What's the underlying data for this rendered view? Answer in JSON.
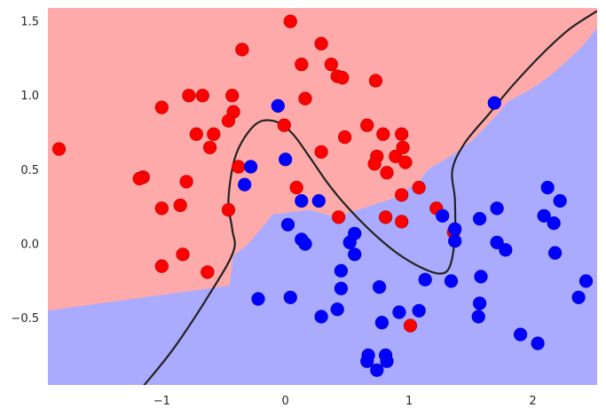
{
  "chart_data": {
    "type": "scatter",
    "title": "",
    "xlabel": "",
    "ylabel": "",
    "xlim": [
      -1.92,
      2.52
    ],
    "ylim": [
      -0.95,
      1.59
    ],
    "grid": false,
    "x_ticks": [
      -1,
      0,
      1,
      2
    ],
    "x_tick_labels": [
      "−1",
      "0",
      "1",
      "2"
    ],
    "y_ticks": [
      -0.5,
      0.0,
      0.5,
      1.0,
      1.5
    ],
    "y_tick_labels": [
      "−0.5",
      "0.0",
      "0.5",
      "1.0",
      "1.5"
    ],
    "colors": {
      "class_0_region": "#ffaaaa",
      "class_1_region": "#aaaaff",
      "class_0_points": "#ff0000",
      "class_1_points": "#0000ff",
      "boundary_line": "#222222"
    },
    "regions": [
      {
        "class": 0,
        "label_color": "red",
        "location": "upper-left"
      },
      {
        "class": 1,
        "label_color": "blue",
        "location": "lower-right"
      }
    ],
    "region_boundary": [
      [
        -1.92,
        -0.45
      ],
      [
        -0.45,
        -0.28
      ],
      [
        -0.42,
        -0.08
      ],
      [
        -0.3,
        0.0
      ],
      [
        -0.1,
        0.2
      ],
      [
        0.2,
        0.23
      ],
      [
        0.4,
        0.18
      ],
      [
        0.7,
        0.26
      ],
      [
        0.88,
        0.31
      ],
      [
        1.08,
        0.42
      ],
      [
        1.15,
        0.5
      ],
      [
        1.35,
        0.6
      ],
      [
        1.5,
        0.69
      ],
      [
        1.62,
        0.79
      ],
      [
        1.72,
        0.88
      ],
      [
        1.8,
        0.96
      ],
      [
        2.0,
        1.05
      ],
      [
        2.15,
        1.14
      ],
      [
        2.3,
        1.25
      ],
      [
        2.42,
        1.35
      ],
      [
        2.52,
        1.46
      ]
    ],
    "decision_curve": [
      [
        -1.15,
        -0.96
      ],
      [
        -0.9,
        -0.7
      ],
      [
        -0.6,
        -0.32
      ],
      [
        -0.42,
        -0.05
      ],
      [
        -0.43,
        0.1
      ],
      [
        -0.46,
        0.3
      ],
      [
        -0.4,
        0.6
      ],
      [
        -0.25,
        0.8
      ],
      [
        -0.1,
        0.83
      ],
      [
        0.05,
        0.75
      ],
      [
        0.2,
        0.58
      ],
      [
        0.35,
        0.4
      ],
      [
        0.5,
        0.25
      ],
      [
        0.7,
        0.08
      ],
      [
        0.9,
        -0.06
      ],
      [
        1.1,
        -0.16
      ],
      [
        1.25,
        -0.2
      ],
      [
        1.33,
        -0.15
      ],
      [
        1.37,
        0.05
      ],
      [
        1.37,
        0.3
      ],
      [
        1.35,
        0.5
      ],
      [
        1.45,
        0.68
      ],
      [
        1.65,
        0.88
      ],
      [
        1.85,
        1.08
      ],
      [
        2.1,
        1.3
      ],
      [
        2.3,
        1.45
      ],
      [
        2.52,
        1.57
      ]
    ],
    "series": [
      {
        "class": 0,
        "points": [
          [
            -1.83,
            0.64
          ],
          [
            -0.35,
            1.31
          ],
          [
            -0.43,
            1.0
          ],
          [
            -0.42,
            0.89
          ],
          [
            -0.46,
            0.83
          ],
          [
            -0.78,
            1.0
          ],
          [
            -1.0,
            0.92
          ],
          [
            -0.67,
            1.0
          ],
          [
            -0.72,
            0.74
          ],
          [
            -0.58,
            0.74
          ],
          [
            -0.61,
            0.65
          ],
          [
            -0.38,
            0.52
          ],
          [
            -1.15,
            0.45
          ],
          [
            -1.18,
            0.44
          ],
          [
            -0.8,
            0.42
          ],
          [
            -0.46,
            0.23
          ],
          [
            -0.85,
            0.26
          ],
          [
            -1.0,
            0.24
          ],
          [
            -1.0,
            -0.15
          ],
          [
            -0.83,
            -0.07
          ],
          [
            -0.63,
            -0.19
          ],
          [
            0.04,
            1.5
          ],
          [
            0.29,
            1.35
          ],
          [
            0.13,
            1.21
          ],
          [
            0.37,
            1.21
          ],
          [
            0.42,
            1.13
          ],
          [
            0.46,
            1.12
          ],
          [
            0.73,
            1.1
          ],
          [
            0.16,
            0.98
          ],
          [
            -0.01,
            0.8
          ],
          [
            0.29,
            0.62
          ],
          [
            0.48,
            0.72
          ],
          [
            0.66,
            0.8
          ],
          [
            0.79,
            0.74
          ],
          [
            0.94,
            0.74
          ],
          [
            0.89,
            0.59
          ],
          [
            0.95,
            0.65
          ],
          [
            0.74,
            0.59
          ],
          [
            0.72,
            0.54
          ],
          [
            0.82,
            0.48
          ],
          [
            0.97,
            0.55
          ],
          [
            0.94,
            0.33
          ],
          [
            1.08,
            0.38
          ],
          [
            0.09,
            0.38
          ],
          [
            0.43,
            0.18
          ],
          [
            0.81,
            0.18
          ],
          [
            0.94,
            0.15
          ],
          [
            1.22,
            0.24
          ],
          [
            1.36,
            0.08
          ],
          [
            1.01,
            -0.55
          ]
        ]
      },
      {
        "class": 1,
        "points": [
          [
            -0.06,
            0.93
          ],
          [
            1.69,
            0.95
          ],
          [
            -0.28,
            0.52
          ],
          [
            0.0,
            0.57
          ],
          [
            -0.33,
            0.4
          ],
          [
            0.13,
            0.29
          ],
          [
            0.27,
            0.29
          ],
          [
            0.02,
            0.13
          ],
          [
            0.13,
            0.03
          ],
          [
            0.16,
            0.0
          ],
          [
            0.52,
            0.01
          ],
          [
            0.56,
            0.07
          ],
          [
            0.56,
            -0.07
          ],
          [
            0.45,
            -0.18
          ],
          [
            0.45,
            -0.3
          ],
          [
            0.42,
            -0.44
          ],
          [
            0.29,
            -0.49
          ],
          [
            0.04,
            -0.36
          ],
          [
            -0.22,
            -0.37
          ],
          [
            0.76,
            -0.29
          ],
          [
            0.78,
            -0.53
          ],
          [
            0.92,
            -0.46
          ],
          [
            1.08,
            -0.45
          ],
          [
            1.13,
            -0.24
          ],
          [
            1.27,
            0.19
          ],
          [
            1.34,
            -0.25
          ],
          [
            1.37,
            0.02
          ],
          [
            1.37,
            0.1
          ],
          [
            1.57,
            0.17
          ],
          [
            1.57,
            -0.4
          ],
          [
            1.56,
            -0.49
          ],
          [
            1.58,
            -0.22
          ],
          [
            1.71,
            0.24
          ],
          [
            1.71,
            0.01
          ],
          [
            1.78,
            -0.04
          ],
          [
            1.9,
            -0.61
          ],
          [
            2.04,
            -0.67
          ],
          [
            2.09,
            0.19
          ],
          [
            2.12,
            0.38
          ],
          [
            2.17,
            0.14
          ],
          [
            2.18,
            -0.06
          ],
          [
            2.22,
            0.29
          ],
          [
            2.37,
            -0.36
          ],
          [
            2.43,
            -0.25
          ],
          [
            0.66,
            -0.79
          ],
          [
            0.67,
            -0.75
          ],
          [
            0.74,
            -0.85
          ],
          [
            0.81,
            -0.75
          ],
          [
            0.82,
            -0.79
          ]
        ]
      }
    ]
  }
}
